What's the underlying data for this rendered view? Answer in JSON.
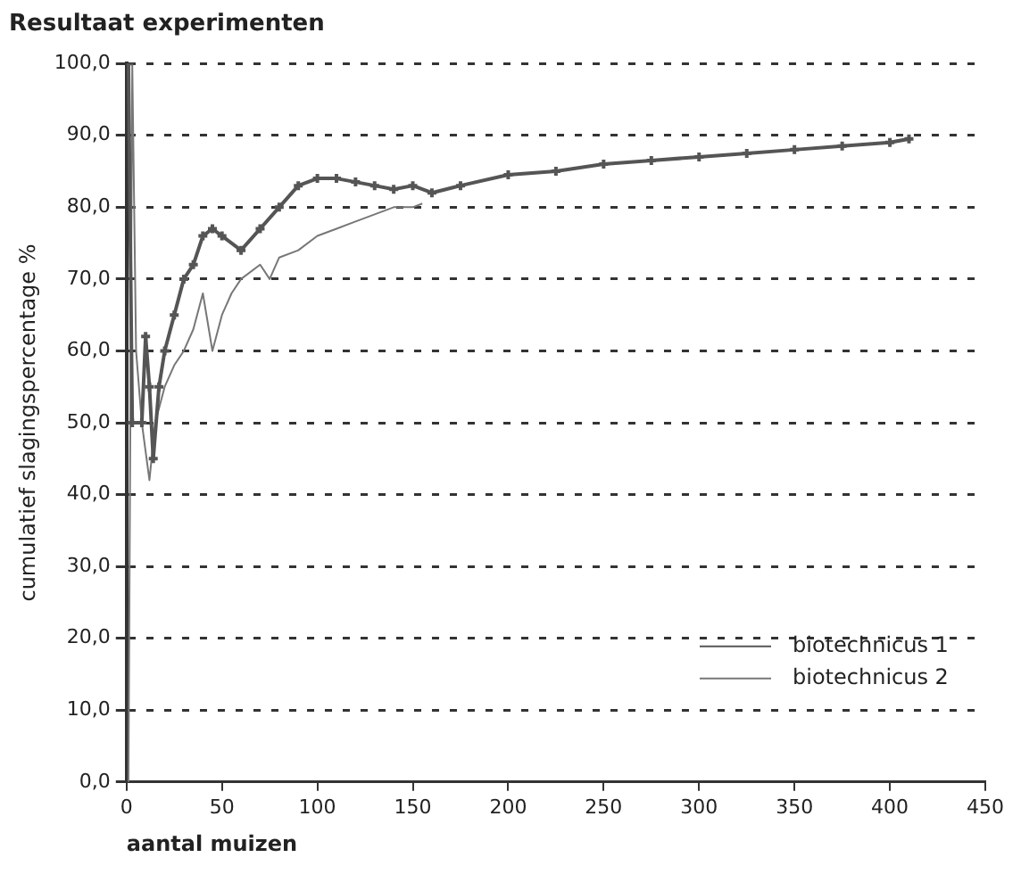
{
  "chart_data": {
    "type": "line",
    "title": "Resultaat experimenten",
    "xlabel": "aantal muizen",
    "ylabel": "cumulatief slagingspercentage %",
    "xlim": [
      0,
      450
    ],
    "xticks": [
      0,
      50,
      100,
      150,
      200,
      250,
      300,
      350,
      400,
      450
    ],
    "ylim": [
      0,
      100
    ],
    "yticks": [
      {
        "value": 0,
        "label": "0,0"
      },
      {
        "value": 10,
        "label": "10,0"
      },
      {
        "value": 20,
        "label": "20,0"
      },
      {
        "value": 30,
        "label": "30,0"
      },
      {
        "value": 40,
        "label": "40,0"
      },
      {
        "value": 50,
        "label": "50,0"
      },
      {
        "value": 60,
        "label": "60,0"
      },
      {
        "value": 70,
        "label": "70,0"
      },
      {
        "value": 80,
        "label": "80,0"
      },
      {
        "value": 90,
        "label": "90,0"
      },
      {
        "value": 100,
        "label": "100,0"
      }
    ],
    "grid": "y",
    "legend": "bottom right",
    "line_style": "solid",
    "series": [
      {
        "name": "biotechnicus 1",
        "color": "#555555",
        "marker": "cross",
        "x": [
          1,
          3,
          8,
          10,
          12,
          14,
          17,
          20,
          25,
          30,
          35,
          40,
          45,
          50,
          60,
          70,
          80,
          90,
          100,
          110,
          120,
          130,
          140,
          150,
          160,
          175,
          200,
          225,
          250,
          275,
          300,
          325,
          350,
          375,
          400,
          410
        ],
        "values": [
          100,
          50,
          50,
          62,
          55,
          45,
          55,
          60,
          65,
          70,
          72,
          76,
          77,
          76,
          74,
          77,
          80,
          83,
          84,
          84,
          83.5,
          83,
          82.5,
          83,
          82,
          83,
          84.5,
          85,
          86,
          86.5,
          87,
          87.5,
          88,
          88.5,
          89,
          89.5
        ]
      },
      {
        "name": "biotechnicus 2",
        "color": "#777777",
        "marker": "none",
        "x": [
          1,
          3,
          5,
          8,
          12,
          15,
          20,
          25,
          30,
          35,
          40,
          45,
          50,
          55,
          60,
          70,
          75,
          80,
          90,
          100,
          110,
          120,
          130,
          140,
          150,
          155
        ],
        "values": [
          0,
          100,
          60,
          50,
          42,
          50,
          55,
          58,
          60,
          63,
          68,
          60,
          65,
          68,
          70,
          72,
          70,
          73,
          74,
          76,
          77,
          78,
          79,
          80,
          80,
          80.5
        ]
      }
    ]
  }
}
